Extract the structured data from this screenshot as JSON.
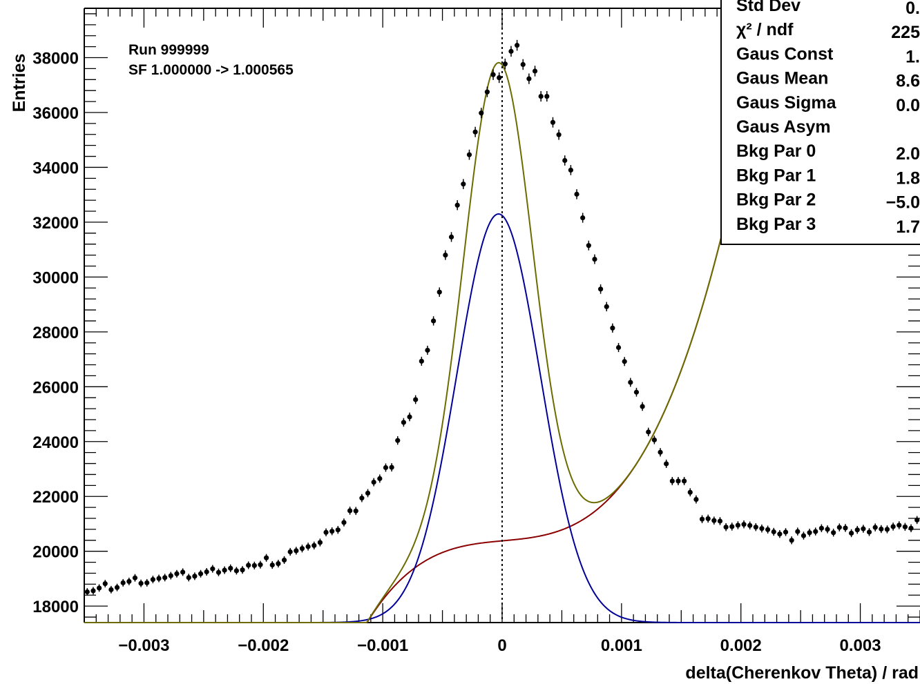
{
  "chart_data": {
    "type": "scatter",
    "xlabel": "delta(Cherenkov Theta) / rad",
    "ylabel": "Entries",
    "xlim": [
      -0.0035,
      0.0035
    ],
    "ylim": [
      17400,
      39800
    ],
    "x_ticks": [
      -0.003,
      -0.002,
      -0.001,
      0,
      0.001,
      0.002,
      0.003
    ],
    "x_tick_labels": [
      "−0.003",
      "−0.002",
      "−0.001",
      "0",
      "0.001",
      "0.002",
      "0.003"
    ],
    "y_ticks": [
      18000,
      20000,
      22000,
      24000,
      26000,
      28000,
      30000,
      32000,
      34000,
      36000,
      38000
    ],
    "y_tick_labels": [
      "18000",
      "20000",
      "22000",
      "24000",
      "26000",
      "28000",
      "30000",
      "32000",
      "34000",
      "36000",
      "38000"
    ],
    "grid": false,
    "annotations": [
      "Run 999999",
      "SF  1.000000 -> 1.000565"
    ],
    "reference_line_x": 0,
    "series": [
      {
        "kind": "data-points",
        "color": "#000000",
        "bin_width": 5e-05,
        "x_start": -0.003475,
        "values": [
          18520,
          18560,
          18660,
          18820,
          18600,
          18680,
          18850,
          18900,
          19030,
          18830,
          18850,
          18970,
          19010,
          19040,
          19110,
          19180,
          19240,
          19040,
          19090,
          19180,
          19250,
          19360,
          19230,
          19310,
          19380,
          19290,
          19320,
          19490,
          19480,
          19510,
          19760,
          19500,
          19550,
          19680,
          19980,
          20020,
          20100,
          20170,
          20210,
          20320,
          20690,
          20730,
          20780,
          21050,
          21480,
          21470,
          21940,
          22120,
          22520,
          22650,
          23050,
          23060,
          24040,
          24700,
          24900,
          25530,
          26930,
          27330,
          28400,
          29450,
          30800,
          31460,
          32620,
          33390,
          34460,
          35290,
          35980,
          36750,
          37380,
          37270,
          37770,
          38230,
          38450,
          37750,
          37230,
          37510,
          36590,
          36590,
          35640,
          35190,
          34250,
          33900,
          33020,
          32160,
          31150,
          30650,
          29560,
          28920,
          28140,
          27430,
          26920,
          26160,
          25800,
          25280,
          24350,
          24060,
          23610,
          23190,
          22560,
          22560,
          22560,
          22150,
          21890,
          21170,
          21190,
          21120,
          21100,
          20880,
          20900,
          20950,
          20980,
          20940,
          20880,
          20830,
          20790,
          20710,
          20630,
          20700,
          20400,
          20720,
          20570,
          20680,
          20720,
          20840,
          20800,
          20680,
          20870,
          20850,
          20660,
          20780,
          20820,
          20700,
          20870,
          20810,
          20800,
          20900,
          20950,
          20890,
          20840,
          21140,
          21130,
          21220,
          21110,
          21240,
          21230,
          21170,
          21150
        ]
      },
      {
        "kind": "total-fit",
        "color": "#6b6b00",
        "gauss_amp": 17450,
        "mean": -3e-05,
        "sigma_left": 0.00029,
        "sigma_right": 0.000285,
        "gauss2_amp": 0,
        "gauss2_sigma": 0.00045
      },
      {
        "kind": "signal-gaussian",
        "color": "#000099",
        "gauss_amp": 32300,
        "mean": -3e-05,
        "sigma_left": 0.00035,
        "sigma_right": 0.00035,
        "baseline": 17400
      },
      {
        "kind": "background",
        "color": "#8b0000",
        "poly": [
          20380,
          400000,
          -50000000,
          1700000000000
        ]
      }
    ]
  },
  "stats_box": {
    "rows": [
      {
        "label": "Std Dev",
        "value": "0."
      },
      {
        "label": "χ² / ndf",
        "value": "225"
      },
      {
        "label": "Gaus Const",
        "value": "1."
      },
      {
        "label": "Gaus Mean",
        "value": "8.6"
      },
      {
        "label": "Gaus Sigma",
        "value": "0.0"
      },
      {
        "label": "Gaus Asym",
        "value": ""
      },
      {
        "label": "Bkg Par 0",
        "value": "2.0"
      },
      {
        "label": "Bkg Par 1",
        "value": "1.8"
      },
      {
        "label": "Bkg Par 2",
        "value": "−5.0"
      },
      {
        "label": "Bkg Par 3",
        "value": "1.7"
      }
    ]
  }
}
